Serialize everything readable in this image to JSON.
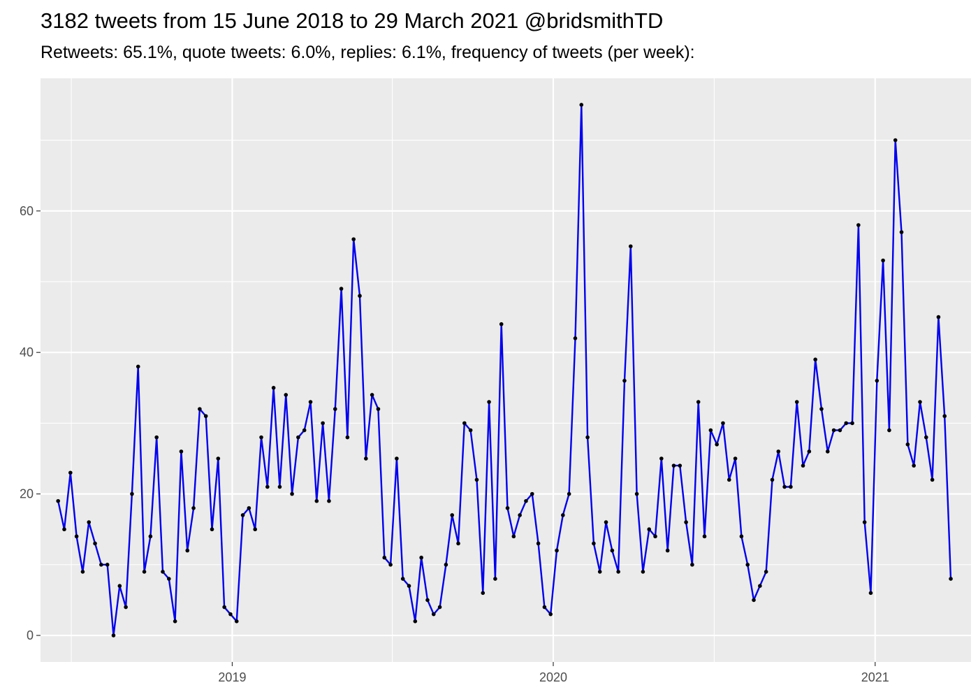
{
  "title": "3182 tweets from 15 June 2018 to 29 March 2021 @bridsmithTD",
  "subtitle": "Retweets: 65.1%, quote tweets: 6.0%, replies: 6.1%, frequency of tweets (per week):",
  "colors": {
    "panel_background": "#ebebeb",
    "grid_major": "#ffffff",
    "line": "#0000ee",
    "point": "#000000",
    "tick_text": "#4d4d4d"
  },
  "chart_data": {
    "type": "line",
    "title": "3182 tweets from 15 June 2018 to 29 March 2021 @bridsmithTD",
    "subtitle": "Retweets: 65.1%, quote tweets: 6.0%, replies: 6.1%, frequency of tweets (per week):",
    "xlabel": "",
    "ylabel": "",
    "x_axis": {
      "type": "date",
      "range": [
        "2018-05-28",
        "2021-04-20"
      ],
      "ticks": [
        "2019-01-01",
        "2020-01-01",
        "2021-01-01"
      ],
      "tick_labels": [
        "2019",
        "2020",
        "2021"
      ],
      "minor_grid": [
        "2018-07-02",
        "2019-07-02",
        "2020-07-02"
      ]
    },
    "y_axis": {
      "range": [
        -3.75,
        78.75
      ],
      "ticks": [
        0,
        20,
        40,
        60
      ],
      "tick_labels": [
        "0",
        "20",
        "40",
        "60"
      ],
      "minor_grid": [
        10,
        30,
        50,
        70
      ]
    },
    "grid": true,
    "legend": "none",
    "series": [
      {
        "x": [
          "2018-06-17",
          "2018-06-24",
          "2018-07-01",
          "2018-07-08",
          "2018-07-15",
          "2018-07-22",
          "2018-07-29",
          "2018-08-05",
          "2018-08-12",
          "2018-08-19",
          "2018-08-26",
          "2018-09-02",
          "2018-09-09",
          "2018-09-16",
          "2018-09-23",
          "2018-09-30",
          "2018-10-07",
          "2018-10-14",
          "2018-10-21",
          "2018-10-28",
          "2018-11-04",
          "2018-11-11",
          "2018-11-18",
          "2018-11-25",
          "2018-12-02",
          "2018-12-09",
          "2018-12-16",
          "2018-12-23",
          "2018-12-30",
          "2019-01-06",
          "2019-01-13",
          "2019-01-20",
          "2019-01-27",
          "2019-02-03",
          "2019-02-10",
          "2019-02-17",
          "2019-02-24",
          "2019-03-03",
          "2019-03-10",
          "2019-03-17",
          "2019-03-24",
          "2019-03-31",
          "2019-04-07",
          "2019-04-14",
          "2019-04-21",
          "2019-04-28",
          "2019-05-05",
          "2019-05-12",
          "2019-05-19",
          "2019-05-26",
          "2019-06-02",
          "2019-06-09",
          "2019-06-16",
          "2019-06-23",
          "2019-06-30",
          "2019-07-07",
          "2019-07-14",
          "2019-07-21",
          "2019-07-28",
          "2019-08-04",
          "2019-08-11",
          "2019-08-18",
          "2019-08-25",
          "2019-09-01",
          "2019-09-08",
          "2019-09-15",
          "2019-09-22",
          "2019-09-29",
          "2019-10-06",
          "2019-10-13",
          "2019-10-20",
          "2019-10-27",
          "2019-11-03",
          "2019-11-10",
          "2019-11-17",
          "2019-11-24",
          "2019-12-01",
          "2019-12-08",
          "2019-12-15",
          "2019-12-22",
          "2019-12-29",
          "2020-01-05",
          "2020-01-12",
          "2020-01-19",
          "2020-01-26",
          "2020-02-02",
          "2020-02-09",
          "2020-02-16",
          "2020-02-23",
          "2020-03-01",
          "2020-03-08",
          "2020-03-15",
          "2020-03-22",
          "2020-03-29",
          "2020-04-05",
          "2020-04-12",
          "2020-04-19",
          "2020-04-26",
          "2020-05-03",
          "2020-05-10",
          "2020-05-17",
          "2020-05-24",
          "2020-05-31",
          "2020-06-07",
          "2020-06-14",
          "2020-06-21",
          "2020-06-28",
          "2020-07-05",
          "2020-07-12",
          "2020-07-19",
          "2020-07-26",
          "2020-08-02",
          "2020-08-09",
          "2020-08-16",
          "2020-08-23",
          "2020-08-30",
          "2020-09-06",
          "2020-09-13",
          "2020-09-20",
          "2020-09-27",
          "2020-10-04",
          "2020-10-11",
          "2020-10-18",
          "2020-10-25",
          "2020-11-01",
          "2020-11-08",
          "2020-11-15",
          "2020-11-22",
          "2020-11-29",
          "2020-12-06",
          "2020-12-13",
          "2020-12-20",
          "2020-12-27",
          "2021-01-03",
          "2021-01-10",
          "2021-01-17",
          "2021-01-24",
          "2021-01-31",
          "2021-02-07",
          "2021-02-14",
          "2021-02-21",
          "2021-02-28",
          "2021-03-07",
          "2021-03-14",
          "2021-03-21",
          "2021-03-28"
        ],
        "y": [
          19,
          15,
          23,
          14,
          9,
          16,
          13,
          10,
          10,
          0,
          7,
          4,
          20,
          38,
          9,
          14,
          28,
          9,
          8,
          2,
          26,
          12,
          18,
          32,
          31,
          15,
          25,
          4,
          3,
          2,
          17,
          18,
          15,
          28,
          21,
          35,
          21,
          34,
          20,
          28,
          29,
          33,
          19,
          30,
          19,
          32,
          49,
          28,
          56,
          48,
          25,
          34,
          32,
          11,
          10,
          25,
          8,
          7,
          2,
          11,
          5,
          3,
          4,
          10,
          17,
          13,
          30,
          29,
          22,
          6,
          33,
          8,
          44,
          18,
          14,
          17,
          19,
          20,
          13,
          4,
          3,
          12,
          17,
          20,
          42,
          75,
          28,
          13,
          9,
          16,
          12,
          9,
          36,
          55,
          20,
          9,
          15,
          14,
          25,
          12,
          24,
          24,
          16,
          10,
          33,
          14,
          29,
          27,
          30,
          22,
          25,
          14,
          10,
          5,
          7,
          9,
          22,
          26,
          21,
          21,
          33,
          24,
          26,
          39,
          32,
          26,
          29,
          29,
          30,
          30,
          58,
          16,
          6,
          36,
          53,
          29,
          70,
          57,
          27,
          24,
          33,
          28,
          22,
          45,
          31,
          8
        ]
      }
    ]
  }
}
